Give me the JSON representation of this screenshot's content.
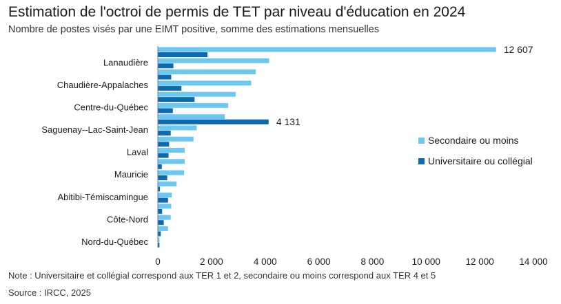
{
  "chart_data": {
    "type": "bar",
    "orientation": "horizontal",
    "title": "Estimation de l'octroi de permis de TET par niveau d'éducation en 2024",
    "subtitle": "Nombre de postes visés par une EIMT positive, somme des estimations mensuelles",
    "categories": [
      "",
      "Lanaudière",
      "",
      "Chaudière-Appalaches",
      "",
      "Centre-du-Québec",
      "",
      "Saguenay--Lac-Saint-Jean",
      "",
      "Laval",
      "",
      "Mauricie",
      "",
      "Abitibi-Témiscamingue",
      "",
      "Côte-Nord",
      "",
      "Nord-du-Québec"
    ],
    "series": [
      {
        "name": "Secondaire ou moins",
        "color": "#6cc8f2",
        "values": [
          12607,
          4150,
          3650,
          3480,
          2900,
          2620,
          2500,
          1450,
          1330,
          1000,
          1000,
          980,
          700,
          520,
          500,
          480,
          380,
          60
        ]
      },
      {
        "name": "Universitaire ou collégial",
        "color": "#0b6ab0",
        "values": [
          1850,
          580,
          500,
          880,
          1370,
          560,
          4131,
          480,
          420,
          400,
          150,
          350,
          80,
          380,
          160,
          220,
          110,
          60
        ]
      }
    ],
    "data_labels": [
      {
        "category_index": 0,
        "series": 0,
        "text": "12 607"
      },
      {
        "category_index": 6,
        "series": 1,
        "text": "4 131"
      }
    ],
    "xlim": [
      0,
      14000
    ],
    "xticks": [
      0,
      2000,
      4000,
      6000,
      8000,
      10000,
      12000,
      14000
    ],
    "xtick_labels": [
      "0",
      "2 000",
      "4 000",
      "6 000",
      "8 000",
      "10 000",
      "12 000",
      "14 000"
    ],
    "xlabel": "",
    "ylabel": "",
    "grid": false,
    "legend_position": "right"
  },
  "footer": {
    "note": "Note : Universitaire et collégial correspond aux TER 1 et 2, secondaire ou moins correspond aux TER 4 et 5",
    "source": "Source : IRCC, 2025"
  }
}
